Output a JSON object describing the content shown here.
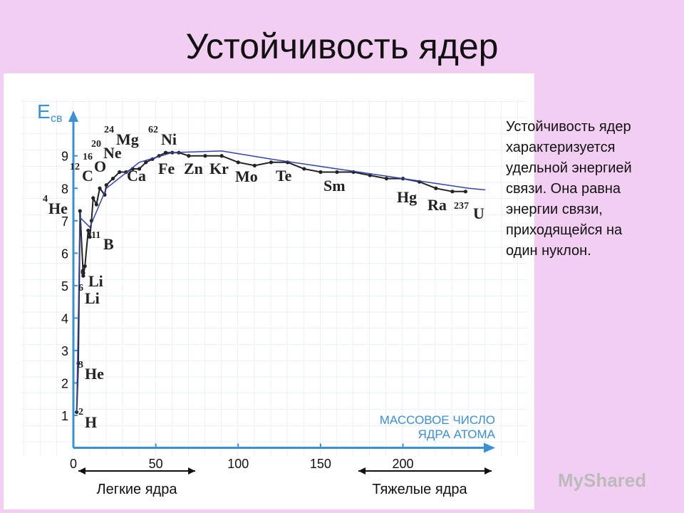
{
  "title": "Устойчивость ядер",
  "description": [
    "Устойчивость ядер",
    "характеризуется",
    "удельной энергией",
    "связи. Она равна",
    "энергии связи,",
    "приходящейся на",
    "один нуклон."
  ],
  "bottom_labels": [
    "Легкие ядра",
    "Тяжелые ядра"
  ],
  "watermark": "MyShared",
  "chart_data": {
    "type": "line",
    "ylabel": "E",
    "ylabel_sub": "св",
    "xlabel": [
      "МАССОВОЕ ЧИСЛО",
      "ЯДРА АТОМА"
    ],
    "xlim": [
      0,
      256
    ],
    "ylim": [
      0,
      10.4
    ],
    "xticks": [
      0,
      50,
      100,
      150,
      200
    ],
    "yticks": [
      1,
      2,
      3,
      4,
      5,
      6,
      7,
      8,
      9
    ],
    "grid": true,
    "axis_color": "#3a8fd9",
    "series": [
      {
        "color": "#222222",
        "markers": true,
        "x": [
          2,
          3,
          4,
          6,
          7,
          9,
          10,
          11,
          12,
          14,
          16,
          19,
          20,
          24,
          28,
          32,
          36,
          40,
          44,
          48,
          52,
          56,
          60,
          64,
          70,
          80,
          90,
          100,
          110,
          120,
          130,
          140,
          150,
          160,
          170,
          180,
          190,
          200,
          210,
          220,
          230,
          238
        ],
        "values": [
          1.1,
          2.6,
          7.3,
          5.3,
          5.6,
          6.7,
          6.5,
          7.0,
          7.7,
          7.5,
          8.0,
          7.8,
          8.1,
          8.3,
          8.5,
          8.5,
          8.6,
          8.6,
          8.8,
          8.9,
          9.0,
          9.1,
          9.1,
          9.1,
          9.0,
          9.0,
          9.0,
          8.8,
          8.7,
          8.8,
          8.8,
          8.6,
          8.5,
          8.5,
          8.5,
          8.4,
          8.3,
          8.3,
          8.2,
          8.0,
          7.9,
          7.9
        ]
      },
      {
        "color": "#3344aa",
        "markers": false,
        "x": [
          2,
          4,
          10,
          20,
          40,
          60,
          90,
          120,
          160,
          200,
          240,
          250
        ],
        "values": [
          1.1,
          7.1,
          6.8,
          8.0,
          8.8,
          9.1,
          9.15,
          8.9,
          8.6,
          8.3,
          8.0,
          7.95
        ]
      }
    ],
    "annotations": [
      {
        "mass": "2",
        "symbol": "H"
      },
      {
        "mass": "3",
        "symbol": "He"
      },
      {
        "mass": "6",
        "symbol": "Li"
      },
      {
        "mass": "6",
        "symbol": "Li"
      },
      {
        "mass": "11",
        "symbol": "B"
      },
      {
        "mass": "4",
        "symbol": "He"
      },
      {
        "mass": "12",
        "symbol": "C"
      },
      {
        "mass": "16",
        "symbol": "O"
      },
      {
        "mass": "20",
        "symbol": "Ne"
      },
      {
        "mass": "24",
        "symbol": "Mg"
      },
      {
        "symbol": "Ca"
      },
      {
        "mass": "62",
        "symbol": "Ni"
      },
      {
        "symbol": "Fe"
      },
      {
        "symbol": "Zn"
      },
      {
        "symbol": "Kr"
      },
      {
        "symbol": "Mo"
      },
      {
        "symbol": "Te"
      },
      {
        "symbol": "Sm"
      },
      {
        "symbol": "Hg"
      },
      {
        "symbol": "Ra"
      },
      {
        "mass": "237",
        "symbol": "U"
      }
    ]
  }
}
